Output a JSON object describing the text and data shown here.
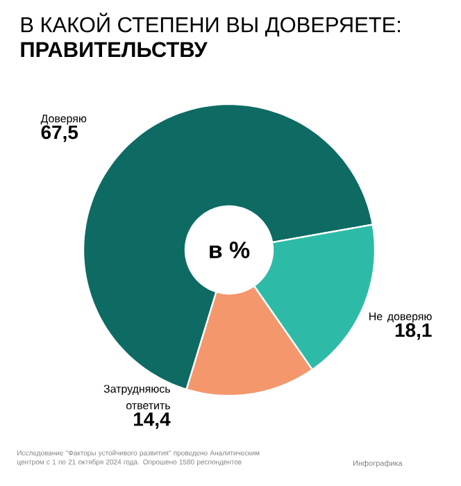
{
  "chart_data": {
    "type": "donut",
    "title": "В КАКОЙ СТЕПЕНИ ВЫ ДОВЕРЯЕТЕ:",
    "subtitle": "ПРАВИТЕЛЬСТВУ",
    "categories": [
      "Доверяю",
      "Затрудняюсь ответить",
      "Не доверяю"
    ],
    "values": [
      67.5,
      14.4,
      18.1
    ],
    "value_labels": [
      "67,5",
      "14,4",
      "18,1"
    ],
    "colors": [
      "#0d6b64",
      "#f4976c",
      "#2dbba7"
    ],
    "annotations": [
      "в %",
      "Исследование \"Факторы устойчивого развития\" проведено Аналитическим центром с 1 по 21 октября 2024 года. Опрошено 1580 респондентов",
      "Инфографика"
    ]
  }
}
